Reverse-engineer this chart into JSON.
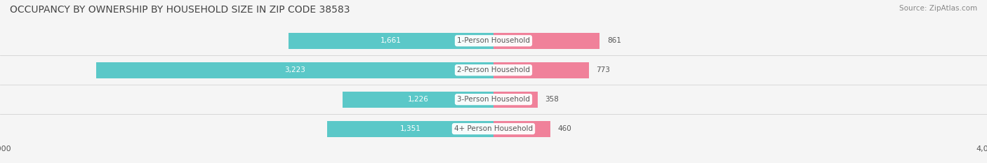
{
  "title": "OCCUPANCY BY OWNERSHIP BY HOUSEHOLD SIZE IN ZIP CODE 38583",
  "source": "Source: ZipAtlas.com",
  "categories": [
    "1-Person Household",
    "2-Person Household",
    "3-Person Household",
    "4+ Person Household"
  ],
  "owner_values": [
    1661,
    3223,
    1226,
    1351
  ],
  "renter_values": [
    861,
    773,
    358,
    460
  ],
  "owner_color": "#5BC8C8",
  "renter_color": "#F0819A",
  "axis_max": 4000,
  "bg_color": "#F5F5F5",
  "bar_bg_color": "#FFFFFF",
  "label_color_owner_inside": "#FFFFFF",
  "label_color_owner_outside": "#555555",
  "label_color_renter_outside": "#555555",
  "center_label_color": "#555555",
  "title_fontsize": 10,
  "source_fontsize": 7.5,
  "bar_height": 0.55,
  "figsize": [
    14.06,
    2.33
  ]
}
